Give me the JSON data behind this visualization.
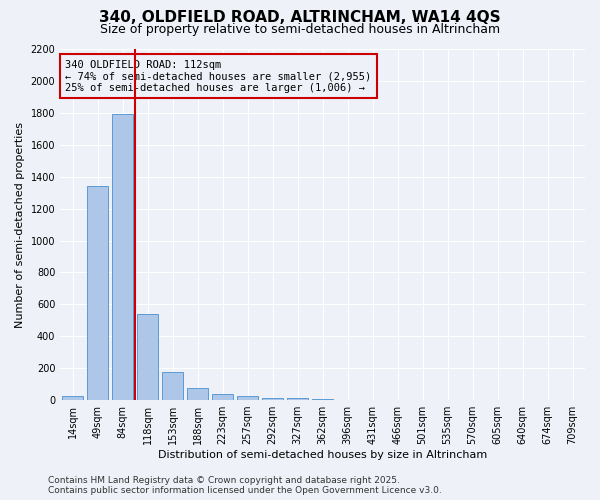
{
  "title": "340, OLDFIELD ROAD, ALTRINCHAM, WA14 4QS",
  "subtitle": "Size of property relative to semi-detached houses in Altrincham",
  "xlabel": "Distribution of semi-detached houses by size in Altrincham",
  "ylabel": "Number of semi-detached properties",
  "categories": [
    "14sqm",
    "49sqm",
    "84sqm",
    "118sqm",
    "153sqm",
    "188sqm",
    "223sqm",
    "257sqm",
    "292sqm",
    "327sqm",
    "362sqm",
    "396sqm",
    "431sqm",
    "466sqm",
    "501sqm",
    "535sqm",
    "570sqm",
    "605sqm",
    "640sqm",
    "674sqm",
    "709sqm"
  ],
  "values": [
    28,
    1340,
    1790,
    540,
    175,
    78,
    35,
    25,
    15,
    10,
    5,
    0,
    0,
    0,
    0,
    0,
    0,
    0,
    0,
    0,
    0
  ],
  "bar_color": "#aec6e8",
  "bar_edge_color": "#5b9bd5",
  "vline_color": "#cc0000",
  "vline_x": 2.5,
  "annotation_title": "340 OLDFIELD ROAD: 112sqm",
  "annotation_line1": "← 74% of semi-detached houses are smaller (2,955)",
  "annotation_line2": "25% of semi-detached houses are larger (1,006) →",
  "annotation_box_color": "#cc0000",
  "ylim": [
    0,
    2200
  ],
  "yticks": [
    0,
    200,
    400,
    600,
    800,
    1000,
    1200,
    1400,
    1600,
    1800,
    2000,
    2200
  ],
  "bg_color": "#eef2f8",
  "footer1": "Contains HM Land Registry data © Crown copyright and database right 2025.",
  "footer2": "Contains public sector information licensed under the Open Government Licence v3.0.",
  "title_fontsize": 11,
  "subtitle_fontsize": 9,
  "axis_label_fontsize": 8,
  "tick_fontsize": 7,
  "footer_fontsize": 6.5,
  "annotation_fontsize": 7.5
}
